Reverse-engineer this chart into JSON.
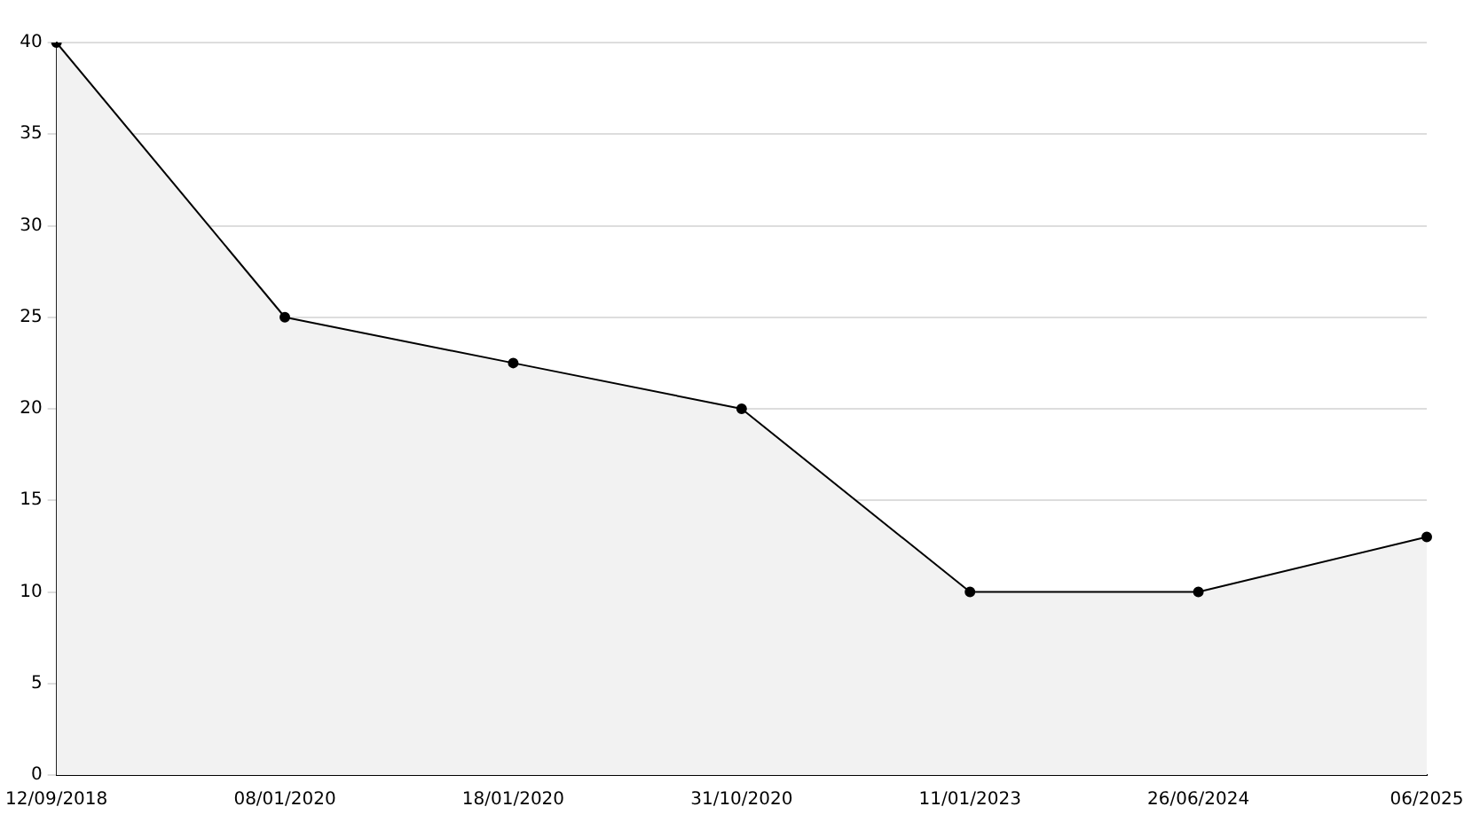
{
  "chart_data": {
    "type": "area",
    "categories": [
      "12/09/2018",
      "08/01/2020",
      "18/01/2020",
      "31/10/2020",
      "11/01/2023",
      "26/06/2024",
      "06/2025"
    ],
    "series": [
      {
        "color": "#000000",
        "values": [
          40,
          25,
          22.5,
          20,
          10,
          10,
          13
        ]
      }
    ],
    "ylim": [
      0,
      40
    ],
    "yticks": [
      0,
      5,
      10,
      15,
      20,
      25,
      30,
      35,
      40
    ],
    "grid": "y",
    "marker": "circle",
    "legend": false
  }
}
